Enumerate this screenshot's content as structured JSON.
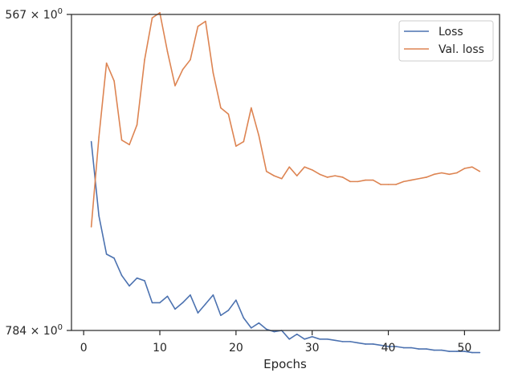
{
  "chart_data": {
    "type": "line",
    "title": "",
    "xlabel": "Epochs",
    "ylabel": "",
    "y_scale": "log",
    "grid": false,
    "legend_position": "top-right",
    "xlim": [
      -1.6,
      54.6
    ],
    "xticks": [
      0,
      10,
      20,
      30,
      40,
      50
    ],
    "xtick_labels": [
      "0",
      "10",
      "20",
      "30",
      "40",
      "50"
    ],
    "ytick_labels_mantissa": [
      "567",
      "784"
    ],
    "ytick_label_base": "10",
    "ytick_label_exp": "0",
    "x": [
      1,
      2,
      3,
      4,
      5,
      6,
      7,
      8,
      9,
      10,
      11,
      12,
      13,
      14,
      15,
      16,
      17,
      18,
      19,
      20,
      21,
      22,
      23,
      24,
      25,
      26,
      27,
      28,
      29,
      30,
      31,
      32,
      33,
      34,
      35,
      36,
      37,
      38,
      39,
      40,
      41,
      42,
      43,
      44,
      45,
      46,
      47,
      48,
      49,
      50,
      51,
      52
    ],
    "series": [
      {
        "name": "Loss",
        "color": "#4c72b0",
        "values": [
          646,
          697,
          725,
          728,
          741,
          749,
          743,
          745,
          762,
          762,
          757,
          767,
          762,
          756,
          770,
          763,
          756,
          772,
          768,
          760,
          774,
          782,
          778,
          783,
          785,
          784,
          791,
          787,
          791,
          789,
          791,
          791,
          792,
          793,
          793,
          794,
          795,
          795,
          796,
          797,
          797,
          798,
          798,
          799,
          799,
          800,
          800,
          801,
          801,
          801,
          802,
          802
        ]
      },
      {
        "name": "Val. loss",
        "color": "#dd8452",
        "values": [
          705,
          643,
          596,
          607,
          645,
          648,
          635,
          594,
          569,
          566,
          589,
          610,
          600,
          594,
          574,
          571,
          602,
          624,
          628,
          649,
          646,
          624,
          642,
          666,
          669,
          671,
          663,
          669,
          663,
          665,
          668,
          670,
          669,
          670,
          673,
          673,
          672,
          672,
          675,
          675,
          675,
          673,
          672,
          671,
          670,
          668,
          667,
          668,
          667,
          664,
          663,
          666
        ]
      }
    ]
  }
}
